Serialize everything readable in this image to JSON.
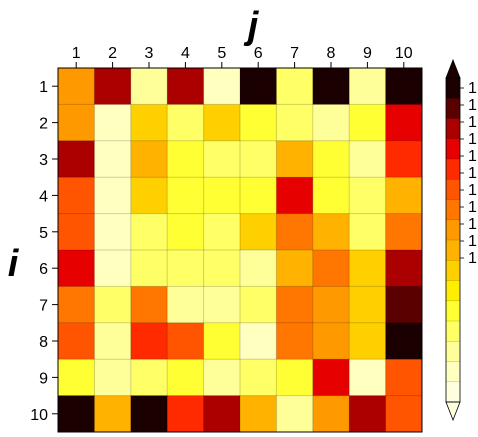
{
  "chart_data": {
    "type": "heatmap",
    "xlabel": "j",
    "ylabel": "i",
    "x_categories": [
      "1",
      "2",
      "3",
      "4",
      "5",
      "6",
      "7",
      "8",
      "9",
      "10"
    ],
    "y_categories": [
      "1",
      "2",
      "3",
      "4",
      "5",
      "6",
      "7",
      "8",
      "9",
      "10"
    ],
    "value_range": [
      0,
      15
    ],
    "colorbar": {
      "levels": 15,
      "tick_labels": [
        "1",
        "1",
        "1",
        "1",
        "1",
        "1",
        "1",
        "1",
        "1",
        "1",
        "1"
      ],
      "colors": [
        "#ffffe0",
        "#ffffc0",
        "#ffff99",
        "#ffff66",
        "#ffff33",
        "#ffee00",
        "#ffd000",
        "#ffb300",
        "#ff9900",
        "#ff7700",
        "#ff5500",
        "#ff2a00",
        "#e60000",
        "#aa0000",
        "#5a0000",
        "#1a0000"
      ],
      "extend": "both"
    },
    "values": [
      [
        8,
        13,
        2,
        13,
        1,
        15,
        3,
        15,
        2,
        15
      ],
      [
        8,
        1,
        6,
        3,
        6,
        4,
        3,
        2,
        4,
        12
      ],
      [
        13,
        1,
        7,
        4,
        3,
        3,
        7,
        4,
        2,
        11
      ],
      [
        10,
        1,
        6,
        4,
        4,
        4,
        12,
        4,
        3,
        7
      ],
      [
        10,
        1,
        3,
        4,
        3,
        6,
        9,
        7,
        3,
        9
      ],
      [
        12,
        1,
        3,
        3,
        3,
        2,
        7,
        9,
        6,
        13
      ],
      [
        9,
        3,
        9,
        2,
        2,
        3,
        9,
        8,
        6,
        14
      ],
      [
        10,
        2,
        11,
        10,
        4,
        1,
        9,
        8,
        6,
        15
      ],
      [
        4,
        2,
        3,
        4,
        2,
        3,
        4,
        12,
        1,
        10
      ],
      [
        15,
        7,
        15,
        11,
        13,
        7,
        2,
        8,
        13,
        10
      ]
    ]
  }
}
